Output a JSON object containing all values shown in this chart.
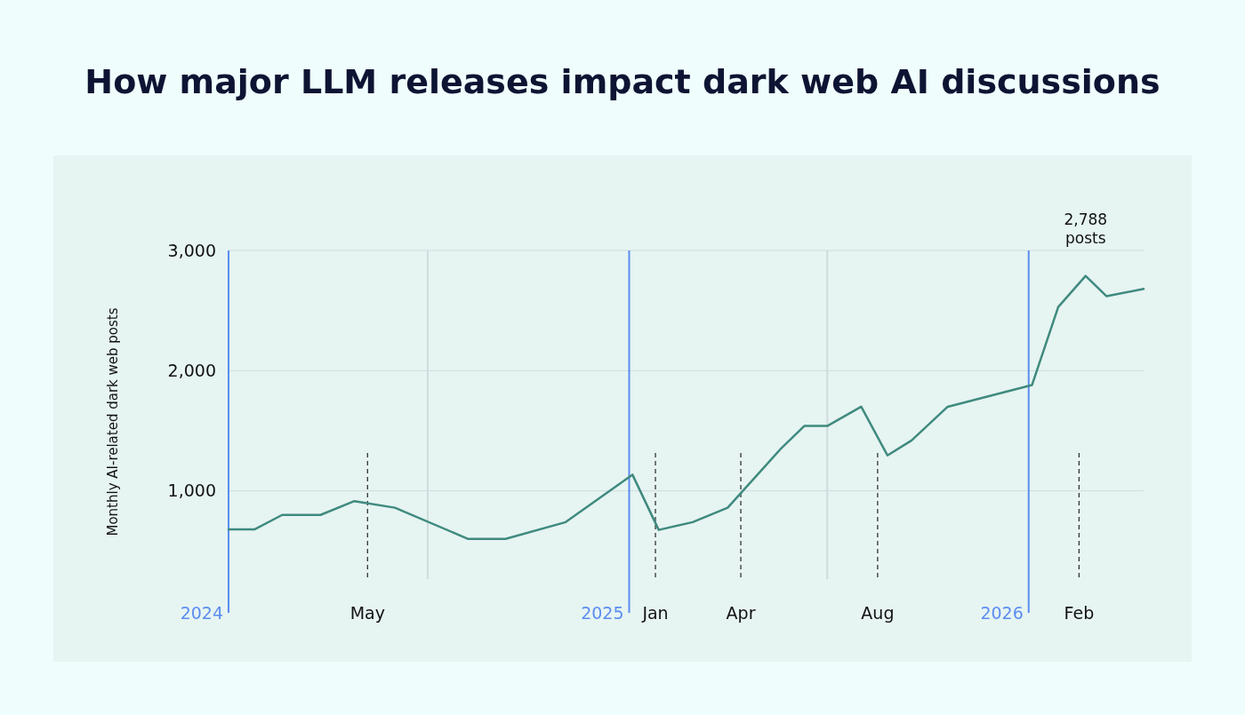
{
  "chart_data": {
    "type": "line",
    "title": "How major LLM releases impact dark web AI discussions",
    "ylabel": "Monthly AI-related dark web posts",
    "x": [
      "2024-01-01",
      "2024-01-25",
      "2024-02-19",
      "2024-03-25",
      "2024-04-25",
      "2024-06-01",
      "2024-08-07",
      "2024-09-10",
      "2024-11-04",
      "2025-01-04",
      "2025-01-28",
      "2025-02-28",
      "2025-04-01",
      "2025-05-19",
      "2025-06-10",
      "2025-07-01",
      "2025-08-01",
      "2025-08-25",
      "2025-09-16",
      "2025-10-19",
      "2026-01-04",
      "2026-01-28",
      "2026-02-22",
      "2026-03-13",
      "2026-04-16"
    ],
    "series": [
      {
        "color": "#3f8a7e",
        "values": [
          680,
          680,
          800,
          800,
          915,
          860,
          600,
          600,
          740,
          1135,
          675,
          740,
          860,
          1345,
          1540,
          1540,
          1700,
          1295,
          1420,
          1700,
          1880,
          2530,
          2788,
          2620,
          2680
        ]
      }
    ],
    "xlim": [
      "2024-01-01",
      "2026-04-16"
    ],
    "xticks": [
      {
        "value": "2024-05-07",
        "label": "May"
      },
      {
        "value": "2025-01-25",
        "label": "Jan"
      },
      {
        "value": "2025-04-13",
        "label": "Apr"
      },
      {
        "value": "2025-08-16",
        "label": "Aug"
      },
      {
        "value": "2026-02-16",
        "label": "Feb"
      }
    ],
    "ylim": [
      0,
      3000
    ],
    "yticks": [
      {
        "value": 1000,
        "label": "1,000"
      },
      {
        "value": 2000,
        "label": "2,000"
      },
      {
        "value": 3000,
        "label": "3,000"
      }
    ],
    "grid": "y",
    "marker": "none",
    "line_style": "solid",
    "ref_lines": [
      {
        "axis": "x",
        "value": "2024-01-01",
        "label": "2024",
        "color": "#5b8def",
        "line_style": "solid"
      },
      {
        "axis": "x",
        "value": "2025-01-01",
        "label": "2025",
        "color": "#5b8def",
        "line_style": "solid"
      },
      {
        "axis": "x",
        "value": "2026-01-01",
        "label": "2026",
        "color": "#5b8def",
        "line_style": "solid"
      },
      {
        "axis": "x",
        "value": "2024-07-01",
        "color": "#cfdcdc",
        "line_style": "solid"
      },
      {
        "axis": "x",
        "value": "2025-07-01",
        "color": "#cfdcdc",
        "line_style": "solid"
      },
      {
        "axis": "x",
        "value": "2024-05-07",
        "color": "#333333",
        "line_style": "dashed"
      },
      {
        "axis": "x",
        "value": "2025-01-25",
        "color": "#333333",
        "line_style": "dashed"
      },
      {
        "axis": "x",
        "value": "2025-04-13",
        "color": "#333333",
        "line_style": "dashed"
      },
      {
        "axis": "x",
        "value": "2025-08-16",
        "color": "#333333",
        "line_style": "dashed"
      },
      {
        "axis": "x",
        "value": "2026-02-16",
        "color": "#333333",
        "line_style": "dashed"
      }
    ],
    "annotations": [
      {
        "text": "2,788 posts",
        "x": "2026-02-22",
        "y": 2788
      }
    ]
  }
}
